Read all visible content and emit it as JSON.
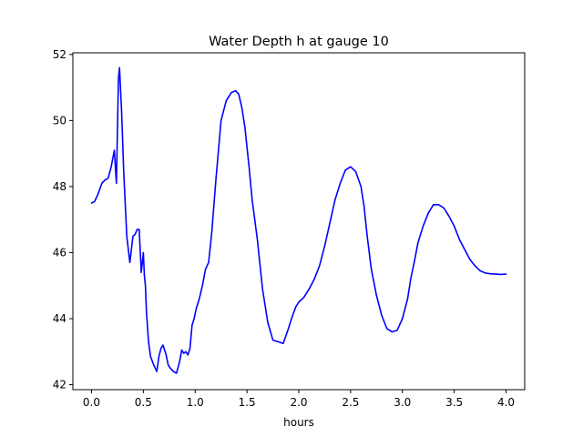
{
  "chart_data": {
    "type": "line",
    "title": "Water Depth h at gauge 10",
    "xlabel": "hours",
    "ylabel": "",
    "xlim": [
      -0.18,
      4.18
    ],
    "ylim": [
      41.85,
      52.05
    ],
    "xticks": [
      0.0,
      0.5,
      1.0,
      1.5,
      2.0,
      2.5,
      3.0,
      3.5,
      4.0
    ],
    "xtick_labels": [
      "0.0",
      "0.5",
      "1.0",
      "1.5",
      "2.0",
      "2.5",
      "3.0",
      "3.5",
      "4.0"
    ],
    "yticks": [
      42,
      44,
      46,
      48,
      50,
      52
    ],
    "ytick_labels": [
      "42",
      "44",
      "46",
      "48",
      "50",
      "52"
    ],
    "grid": false,
    "series": [
      {
        "color": "#0000ff",
        "x": [
          0.0,
          0.03,
          0.06,
          0.1,
          0.13,
          0.16,
          0.19,
          0.22,
          0.24,
          0.26,
          0.27,
          0.29,
          0.31,
          0.34,
          0.37,
          0.4,
          0.42,
          0.44,
          0.46,
          0.48,
          0.5,
          0.51,
          0.52,
          0.53,
          0.55,
          0.57,
          0.6,
          0.63,
          0.65,
          0.67,
          0.69,
          0.72,
          0.74,
          0.76,
          0.79,
          0.82,
          0.85,
          0.87,
          0.89,
          0.91,
          0.93,
          0.95,
          0.97,
          0.99,
          1.01,
          1.04,
          1.07,
          1.1,
          1.13,
          1.16,
          1.2,
          1.25,
          1.3,
          1.35,
          1.39,
          1.42,
          1.45,
          1.48,
          1.52,
          1.55,
          1.6,
          1.65,
          1.7,
          1.75,
          1.8,
          1.85,
          1.9,
          1.93,
          1.97,
          2.0,
          2.05,
          2.1,
          2.15,
          2.2,
          2.25,
          2.3,
          2.35,
          2.4,
          2.45,
          2.5,
          2.55,
          2.6,
          2.63,
          2.66,
          2.7,
          2.75,
          2.8,
          2.85,
          2.9,
          2.95,
          3.0,
          3.05,
          3.08,
          3.12,
          3.15,
          3.2,
          3.25,
          3.3,
          3.35,
          3.4,
          3.45,
          3.5,
          3.55,
          3.6,
          3.65,
          3.7,
          3.75,
          3.8,
          3.85,
          3.9,
          3.95,
          4.0
        ],
        "y": [
          47.5,
          47.55,
          47.75,
          48.1,
          48.2,
          48.25,
          48.6,
          49.1,
          48.1,
          51.3,
          51.6,
          50.3,
          48.5,
          46.5,
          45.7,
          46.5,
          46.55,
          46.7,
          46.7,
          45.4,
          46.0,
          45.3,
          45.0,
          44.2,
          43.3,
          42.85,
          42.6,
          42.4,
          42.85,
          43.1,
          43.2,
          42.9,
          42.6,
          42.5,
          42.4,
          42.35,
          42.7,
          43.05,
          42.95,
          43.0,
          42.9,
          43.1,
          43.8,
          44.0,
          44.3,
          44.6,
          45.0,
          45.5,
          45.7,
          46.6,
          48.2,
          50.0,
          50.6,
          50.85,
          50.9,
          50.8,
          50.4,
          49.8,
          48.6,
          47.6,
          46.4,
          44.9,
          43.9,
          43.35,
          43.3,
          43.25,
          43.7,
          44.0,
          44.35,
          44.5,
          44.65,
          44.9,
          45.2,
          45.6,
          46.2,
          46.9,
          47.6,
          48.1,
          48.5,
          48.6,
          48.45,
          48.0,
          47.4,
          46.5,
          45.5,
          44.7,
          44.1,
          43.7,
          43.6,
          43.65,
          44.0,
          44.6,
          45.2,
          45.8,
          46.3,
          46.8,
          47.2,
          47.45,
          47.45,
          47.35,
          47.1,
          46.8,
          46.4,
          46.1,
          45.8,
          45.6,
          45.45,
          45.38,
          45.36,
          45.35,
          45.34,
          45.35
        ]
      }
    ]
  }
}
